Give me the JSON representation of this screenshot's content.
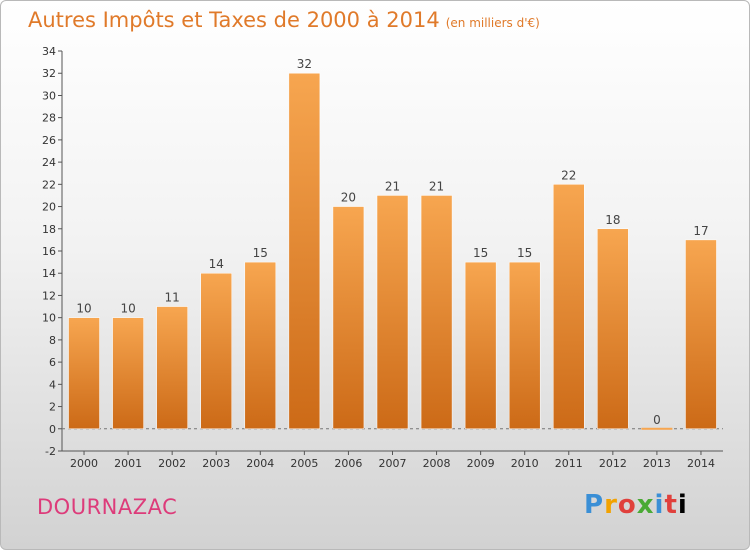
{
  "title": "Autres Impôts et Taxes de 2000 à 2014",
  "title_unit": "(en milliers d'€)",
  "commune": "DOURNAZAC",
  "brand_letters": [
    "P",
    "r",
    "o",
    "x",
    "i",
    "t",
    "i"
  ],
  "colors": {
    "bar_top": "#f7a650",
    "bar_bottom": "#cc6a17",
    "title": "#e07a2a",
    "commune": "#dd3b7a"
  },
  "chart_data": {
    "type": "bar",
    "title": "Autres Impôts et Taxes de 2000 à 2014",
    "ylabel": "",
    "xlabel": "",
    "categories": [
      "2000",
      "2001",
      "2002",
      "2003",
      "2004",
      "2005",
      "2006",
      "2007",
      "2008",
      "2009",
      "2010",
      "2011",
      "2012",
      "2013",
      "2014"
    ],
    "values": [
      10,
      10,
      11,
      14,
      15,
      32,
      20,
      21,
      21,
      15,
      15,
      22,
      18,
      0,
      17
    ],
    "ylim": [
      -2,
      34
    ],
    "yticks": [
      -2,
      0,
      2,
      4,
      6,
      8,
      10,
      12,
      14,
      16,
      18,
      20,
      22,
      24,
      26,
      28,
      30,
      32,
      34
    ],
    "grid": false,
    "legend": "none"
  }
}
